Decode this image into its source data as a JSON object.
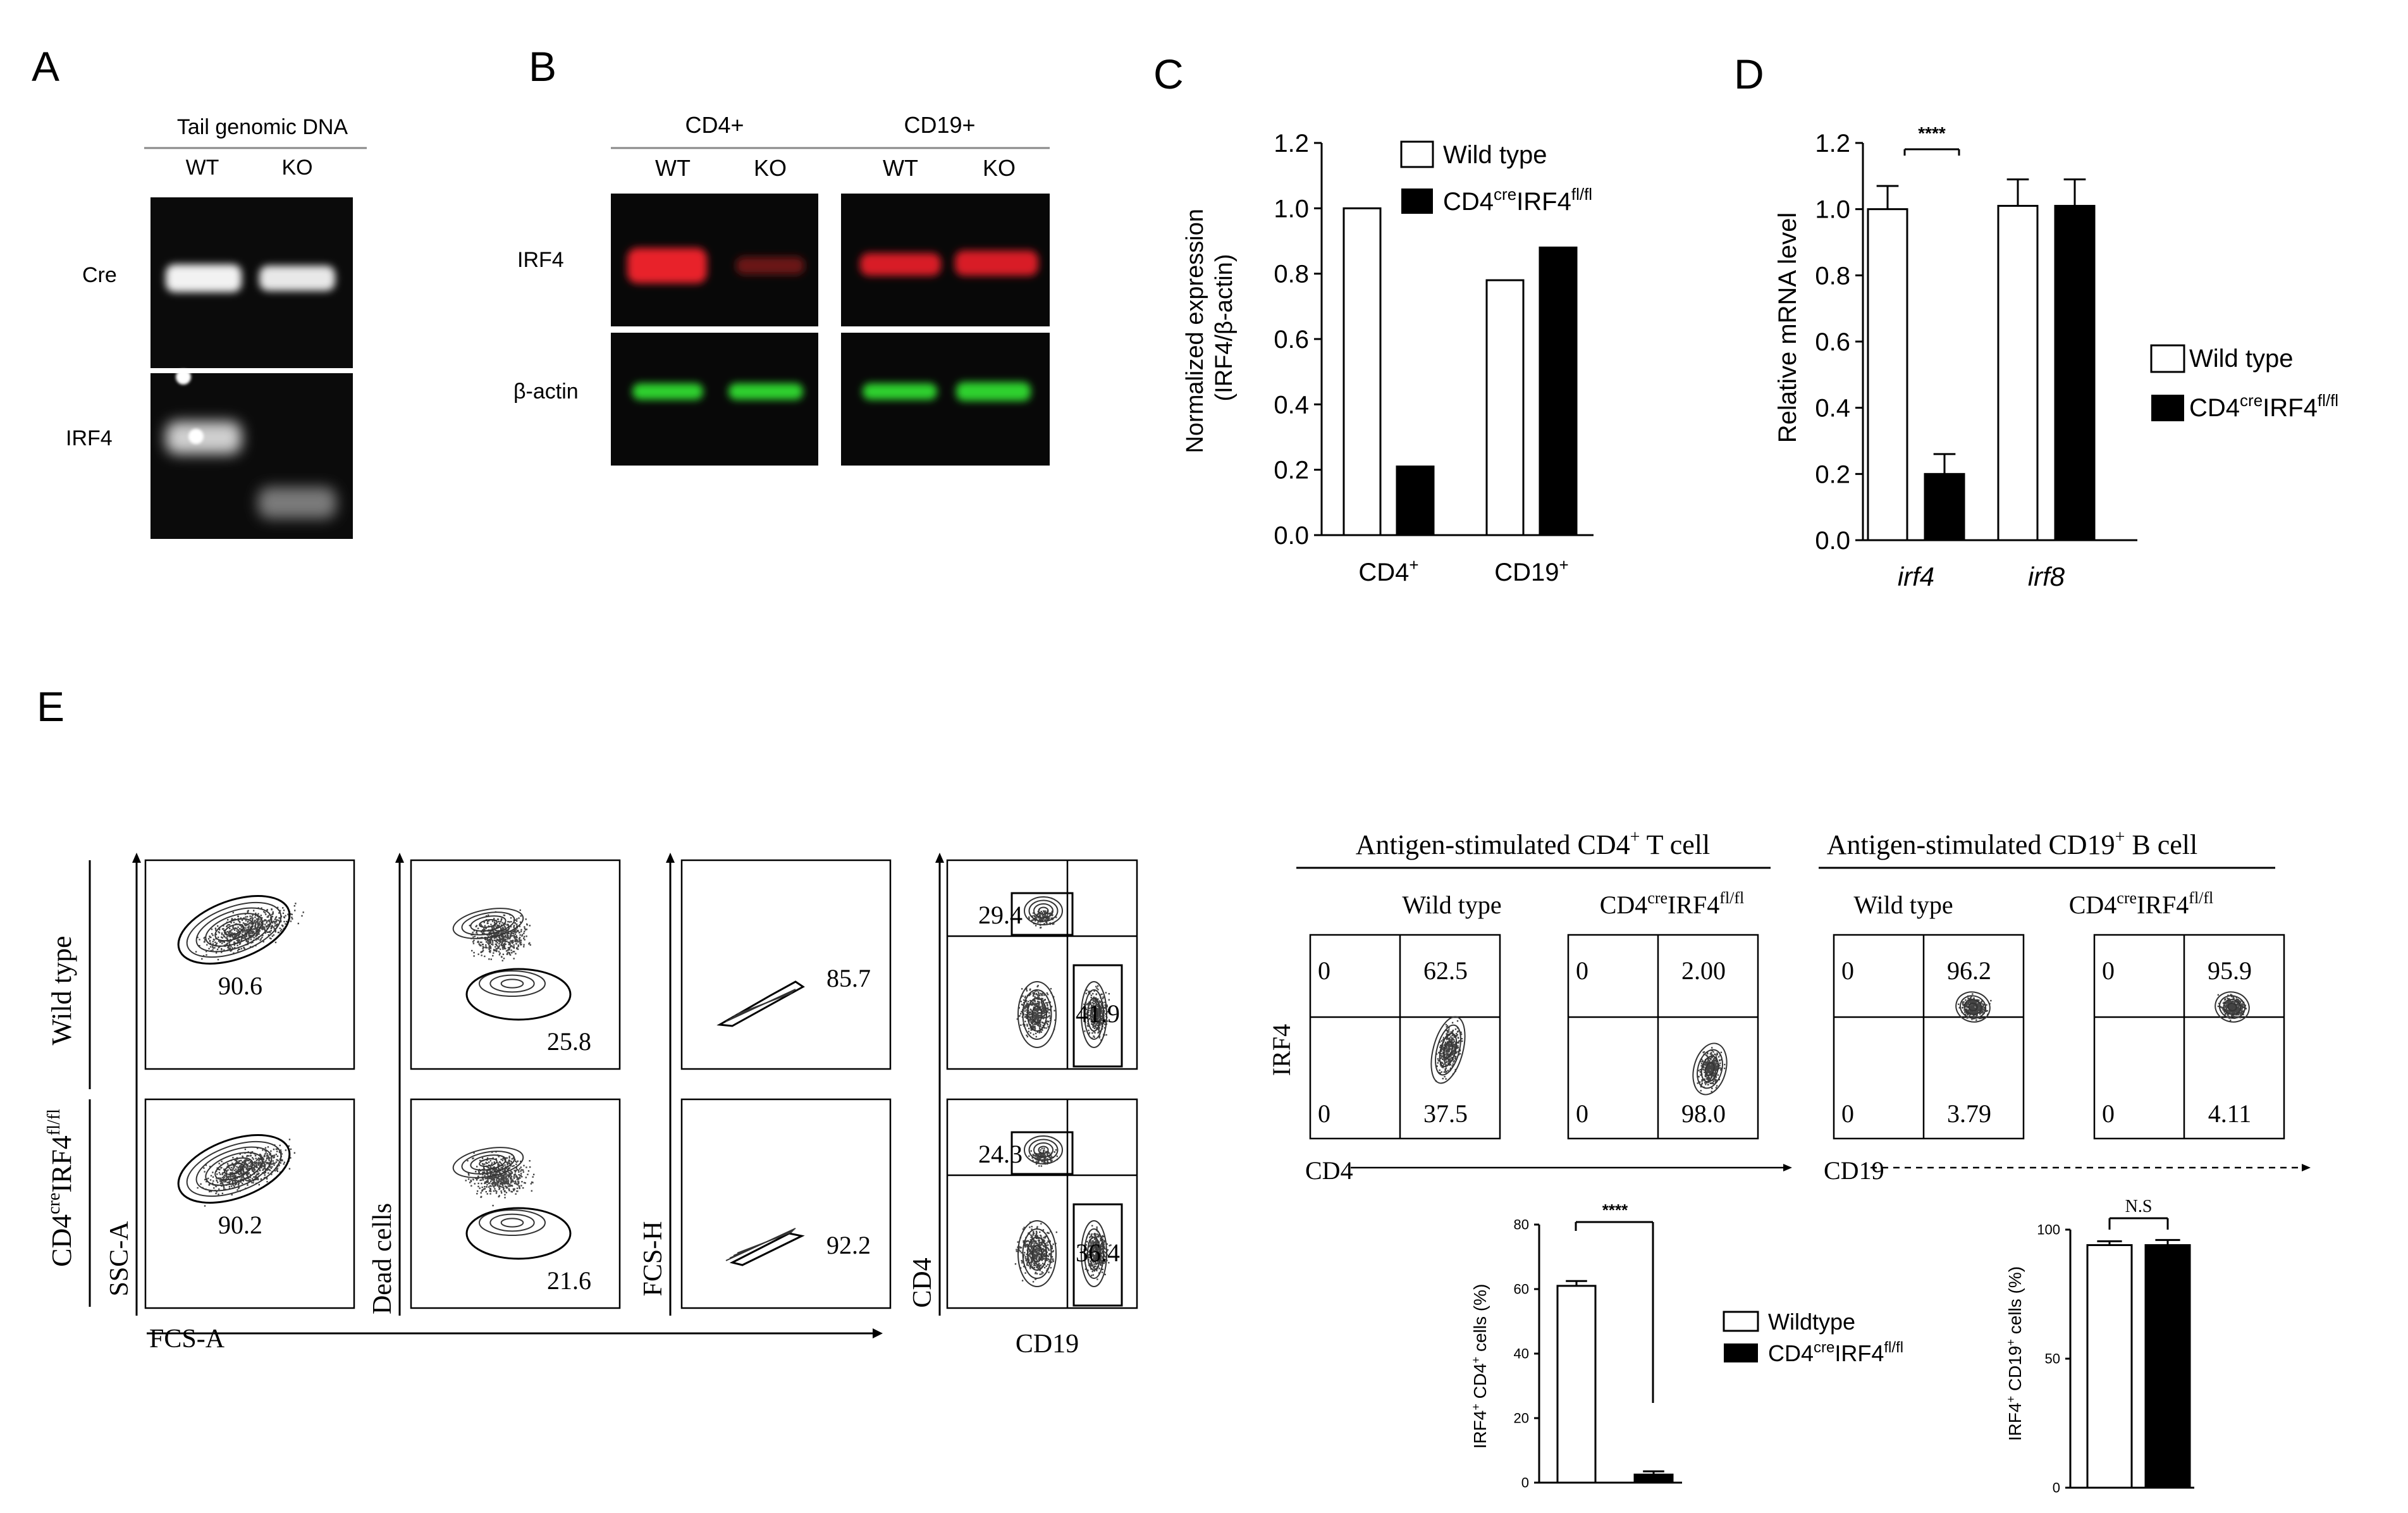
{
  "panels": {
    "A": {
      "label": "A",
      "header": "Tail genomic DNA",
      "lanes": [
        "WT",
        "KO"
      ],
      "rows": [
        "Cre",
        "IRF4"
      ]
    },
    "B": {
      "label": "B",
      "groups": [
        "CD4+",
        "CD19+"
      ],
      "lanes": [
        "WT",
        "KO",
        "WT",
        "KO"
      ],
      "rows": [
        "IRF4",
        "β-actin"
      ]
    },
    "C": {
      "label": "C",
      "legend": [
        "Wild type",
        "CD4creIRF4fl/fl"
      ]
    },
    "D": {
      "label": "D",
      "legend": [
        "Wild type",
        "CD4creIRF4fl/fl"
      ],
      "significance": "****"
    },
    "E": {
      "label": "E",
      "gating": {
        "row_labels": [
          "Wild type",
          "CD4creIRF4fl/fl"
        ],
        "x_labels": [
          "FCS-A",
          "CD19"
        ],
        "y_labels": [
          "SSC-A",
          "Dead cells",
          "FCS-H",
          "CD4"
        ],
        "wt_values": [
          "90.6",
          "25.8",
          "85.7",
          "29.4",
          "41.9"
        ],
        "ko_values": [
          "90.2",
          "21.6",
          "92.2",
          "24.3",
          "36.4"
        ]
      },
      "stim": {
        "headers": [
          "Antigen-stimulated CD4+ T cell",
          "Antigen-stimulated CD19+ B cell"
        ],
        "subheaders": [
          "Wild type",
          "CD4creIRF4fl/fl",
          "Wild type",
          "CD4creIRF4fl/fl"
        ],
        "y_label": "IRF4",
        "x_labels": [
          "CD4",
          "CD19"
        ],
        "quadrants": [
          {
            "ul": "0",
            "ur": "62.5",
            "ll": "0",
            "lr": "37.5"
          },
          {
            "ul": "0",
            "ur": "2.00",
            "ll": "0",
            "lr": "98.0"
          },
          {
            "ul": "0",
            "ur": "96.2",
            "ll": "0",
            "lr": "3.79"
          },
          {
            "ul": "0",
            "ur": "95.9",
            "ll": "0",
            "lr": "4.11"
          }
        ]
      },
      "legend": [
        "Wildtype",
        "CD4creIRF4fl/fl"
      ],
      "sig_left": "****",
      "sig_right": "N.S"
    }
  },
  "chart_data": [
    {
      "type": "bar",
      "ylabel": "Normalized expression (IRF4/β-actin)",
      "categories": [
        "CD4+",
        "CD19+"
      ],
      "series": [
        {
          "name": "Wild type",
          "values": [
            1.0,
            0.78
          ]
        },
        {
          "name": "CD4creIRF4fl/fl",
          "values": [
            0.21,
            0.88
          ]
        }
      ],
      "ylim": [
        0,
        1.2
      ],
      "yticks": [
        "0.0",
        "0.2",
        "0.4",
        "0.6",
        "0.8",
        "1.0",
        "1.2"
      ],
      "legend": "top-right"
    },
    {
      "type": "bar",
      "ylabel": "Relative mRNA level",
      "categories": [
        "irf4",
        "irf8"
      ],
      "series": [
        {
          "name": "Wild type",
          "values": [
            1.0,
            1.01
          ],
          "error": [
            0.07,
            0.08
          ]
        },
        {
          "name": "CD4creIRF4fl/fl",
          "values": [
            0.2,
            1.01
          ],
          "error": [
            0.06,
            0.08
          ]
        }
      ],
      "ylim": [
        0,
        1.2
      ],
      "yticks": [
        "0.0",
        "0.2",
        "0.4",
        "0.6",
        "0.8",
        "1.0",
        "1.2"
      ],
      "legend": "right"
    },
    {
      "type": "bar",
      "ylabel": "IRF4+ CD4+ cells (%)",
      "series": [
        {
          "name": "Wildtype",
          "values": [
            61
          ],
          "error": [
            1.5
          ]
        },
        {
          "name": "CD4creIRF4fl/fl",
          "values": [
            2.5
          ],
          "error": [
            1.0
          ]
        }
      ],
      "ylim": [
        0,
        80
      ],
      "yticks": [
        "0",
        "20",
        "40",
        "60",
        "80"
      ]
    },
    {
      "type": "bar",
      "ylabel": "IRF4+ CD19+ cells (%)",
      "series": [
        {
          "name": "Wildtype",
          "values": [
            94
          ],
          "error": [
            1.5
          ]
        },
        {
          "name": "CD4creIRF4fl/fl",
          "values": [
            94
          ],
          "error": [
            2.0
          ]
        }
      ],
      "ylim": [
        0,
        100
      ],
      "yticks": [
        "0",
        "50",
        "100"
      ]
    }
  ]
}
